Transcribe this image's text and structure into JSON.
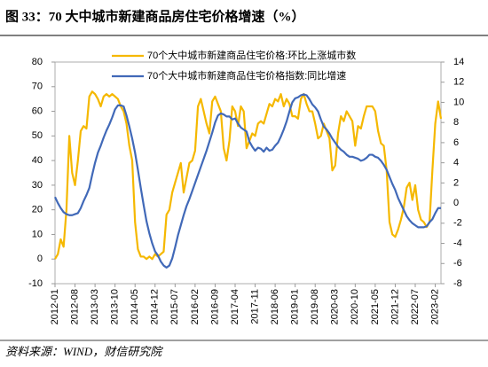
{
  "chart_data": {
    "type": "line",
    "title": "图 33：70 大中城市新建商品房住宅价格增速（%）",
    "source": "资料来源：WIND，财信研究院",
    "categories": [
      "2012-01",
      null,
      null,
      null,
      null,
      null,
      null,
      "2012-08",
      null,
      null,
      null,
      null,
      null,
      null,
      "2013-03",
      null,
      null,
      null,
      null,
      null,
      null,
      "2013-10",
      null,
      null,
      null,
      null,
      null,
      null,
      "2014-05",
      null,
      null,
      null,
      null,
      null,
      null,
      "2014-12",
      null,
      null,
      null,
      null,
      null,
      null,
      "2015-07",
      null,
      null,
      null,
      null,
      null,
      null,
      "2016-02",
      null,
      null,
      null,
      null,
      null,
      null,
      "2016-09",
      null,
      null,
      null,
      null,
      null,
      null,
      "2017-04",
      null,
      null,
      null,
      null,
      null,
      null,
      "2017-11",
      null,
      null,
      null,
      null,
      null,
      null,
      "2018-06",
      null,
      null,
      null,
      null,
      null,
      null,
      "2019-01",
      null,
      null,
      null,
      null,
      null,
      null,
      "2019-08",
      null,
      null,
      null,
      null,
      null,
      null,
      "2020-03",
      null,
      null,
      null,
      null,
      null,
      null,
      "2020-10",
      null,
      null,
      null,
      null,
      null,
      null,
      "2021-05",
      null,
      null,
      null,
      null,
      null,
      null,
      "2021-12",
      null,
      null,
      null,
      null,
      null,
      null,
      "2022-07",
      null,
      null,
      null,
      null,
      null,
      null,
      "2023-02",
      null,
      null
    ],
    "series": [
      {
        "name": "70个大中城市新建商品住宅价格:环比上涨城市数",
        "color": "#F5B800",
        "axis": "y",
        "values": [
          0,
          2,
          8,
          5,
          20,
          50,
          35,
          30,
          40,
          52,
          54,
          53,
          66,
          68,
          67,
          65,
          62,
          66,
          67,
          66,
          67,
          66,
          65,
          62,
          60,
          55,
          46,
          40,
          15,
          4,
          1,
          1,
          0,
          1,
          0,
          2,
          1,
          2,
          3,
          18,
          20,
          27,
          31,
          35,
          39,
          27,
          33,
          39,
          40,
          44,
          62,
          65,
          60,
          55,
          51,
          64,
          66,
          63,
          60,
          45,
          40,
          48,
          62,
          60,
          54,
          62,
          60,
          45,
          48,
          51,
          50,
          55,
          56,
          55,
          59,
          63,
          62,
          65,
          64,
          67,
          62,
          65,
          63,
          58,
          58,
          57,
          65,
          67,
          63,
          60,
          60,
          55,
          49,
          50,
          55,
          52,
          49,
          36,
          38,
          51,
          58,
          56,
          60,
          58,
          56,
          46,
          54,
          53,
          58,
          62,
          62,
          62,
          60,
          52,
          47,
          46,
          36,
          15,
          10,
          9,
          12,
          16,
          21,
          29,
          31,
          24,
          30,
          20,
          16,
          15,
          13,
          15,
          36,
          55,
          64,
          57
        ]
      },
      {
        "name": "70个大中城市新建商品住宅价格指数:同比增速",
        "color": "#4169B8",
        "axis": "y2",
        "values": [
          0.6,
          0,
          -0.5,
          -0.9,
          -1.1,
          -1.2,
          -1.2,
          -1.1,
          -1.0,
          -0.5,
          0.2,
          0.8,
          1.5,
          2.8,
          4.0,
          5.0,
          5.7,
          6.5,
          7.2,
          7.8,
          8.5,
          9.3,
          9.7,
          9.7,
          9.6,
          8.7,
          7.6,
          6.4,
          5.0,
          3.3,
          1.5,
          -0.2,
          -1.8,
          -3.0,
          -4.0,
          -4.8,
          -5.2,
          -5.8,
          -6.2,
          -6.4,
          -6.2,
          -5.5,
          -4.4,
          -3.2,
          -2.2,
          -1.2,
          -0.3,
          0.4,
          1.2,
          2.0,
          2.8,
          3.6,
          4.4,
          5.2,
          6.1,
          7.0,
          8.0,
          8.7,
          8.9,
          8.8,
          8.6,
          8.6,
          8.3,
          8.4,
          7.9,
          7.5,
          7.3,
          7.1,
          6.1,
          5.6,
          5.2,
          5.5,
          5.4,
          5.1,
          5.5,
          5.2,
          5.3,
          5.7,
          6.0,
          6.6,
          7.3,
          8.1,
          9.1,
          10.0,
          10.4,
          10.5,
          10.7,
          10.8,
          10.7,
          10.3,
          9.8,
          9.5,
          9.1,
          8.3,
          7.6,
          7.3,
          6.9,
          6.4,
          6.0,
          5.6,
          5.3,
          5.1,
          4.8,
          4.6,
          4.6,
          4.5,
          4.4,
          4.2,
          4.3,
          4.5,
          4.8,
          4.8,
          4.6,
          4.5,
          4.2,
          3.8,
          3.3,
          2.6,
          1.9,
          1.3,
          0.5,
          -0.1,
          -0.7,
          -1.3,
          -1.7,
          -2.0,
          -2.2,
          -2.4,
          -2.4,
          -2.4,
          -2.3,
          -1.9,
          -1.6,
          -1.0,
          -0.5,
          -0.5
        ]
      }
    ],
    "ylim": [
      -10,
      80
    ],
    "yticks": [
      -10,
      0,
      10,
      20,
      30,
      40,
      50,
      60,
      70,
      80
    ],
    "y2lim": [
      -8,
      14
    ],
    "y2ticks": [
      -8,
      -6,
      -4,
      -2,
      0,
      2,
      4,
      6,
      8,
      10,
      12,
      14
    ],
    "grid": false
  }
}
